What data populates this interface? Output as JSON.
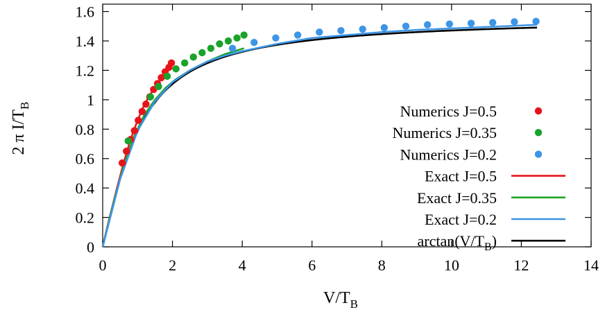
{
  "chart_data": {
    "type": "line",
    "title": "",
    "xlabel": "V/T",
    "xlabel_sub": "B",
    "ylabel": "2 π I/T",
    "ylabel_sub": "B",
    "xlim": [
      0,
      14
    ],
    "ylim": [
      0,
      1.65
    ],
    "xticks": [
      0,
      2,
      4,
      6,
      8,
      10,
      12,
      14
    ],
    "yticks": [
      0,
      0.2,
      0.4,
      0.6,
      0.8,
      1,
      1.2,
      1.4,
      1.6
    ],
    "xtick_labels": [
      "0",
      "2",
      "4",
      "6",
      "8",
      "10",
      "12",
      "14"
    ],
    "ytick_labels": [
      "0",
      "0.2",
      "0.4",
      "0.6",
      "0.8",
      "1",
      "1.2",
      "1.4",
      "1.6"
    ],
    "grid": false,
    "legend_position": "right",
    "series": [
      {
        "name": "Numerics J=0.5",
        "kind": "scatter",
        "color": "#e8131a",
        "x": [
          0.56,
          0.68,
          0.8,
          0.91,
          1.02,
          1.13,
          1.24,
          1.35,
          1.46,
          1.57,
          1.68,
          1.79,
          1.9,
          1.97
        ],
        "y": [
          0.57,
          0.65,
          0.73,
          0.79,
          0.86,
          0.92,
          0.97,
          1.02,
          1.07,
          1.11,
          1.15,
          1.19,
          1.22,
          1.25
        ]
      },
      {
        "name": "Numerics J=0.35",
        "kind": "scatter",
        "color": "#1aa32b",
        "x": [
          0.73,
          1.37,
          1.6,
          1.85,
          2.1,
          2.35,
          2.6,
          2.85,
          3.1,
          3.35,
          3.6,
          3.85,
          4.05
        ],
        "y": [
          0.72,
          1.02,
          1.09,
          1.16,
          1.21,
          1.25,
          1.29,
          1.32,
          1.35,
          1.38,
          1.4,
          1.42,
          1.44
        ]
      },
      {
        "name": "Numerics J=0.2",
        "kind": "scatter",
        "color": "#3d95e6",
        "x": [
          3.72,
          4.34,
          4.96,
          5.59,
          6.21,
          6.83,
          7.45,
          8.07,
          8.69,
          9.31,
          9.94,
          10.56,
          11.18,
          11.8,
          12.42
        ],
        "y": [
          1.35,
          1.39,
          1.42,
          1.44,
          1.46,
          1.47,
          1.48,
          1.49,
          1.5,
          1.51,
          1.515,
          1.52,
          1.525,
          1.53,
          1.533
        ]
      },
      {
        "name": "Exact J=0.5",
        "kind": "line",
        "color": "#e8131a",
        "x": [
          0,
          0.2,
          0.4,
          0.6,
          0.8,
          1.0,
          1.2,
          1.4,
          1.6,
          1.8,
          1.97
        ],
        "y": [
          0,
          0.2,
          0.39,
          0.57,
          0.73,
          0.86,
          0.97,
          1.05,
          1.12,
          1.18,
          1.22
        ]
      },
      {
        "name": "Exact J=0.35",
        "kind": "line",
        "color": "#1aa32b",
        "x": [
          0,
          0.3,
          0.6,
          0.9,
          1.2,
          1.5,
          1.8,
          2.1,
          2.5,
          3.0,
          3.5,
          4.05
        ],
        "y": [
          0,
          0.29,
          0.55,
          0.75,
          0.9,
          1.0,
          1.08,
          1.14,
          1.2,
          1.26,
          1.31,
          1.35
        ]
      },
      {
        "name": "Exact J=0.2",
        "kind": "line",
        "color": "#3d95e6",
        "x": [
          0,
          0.5,
          1,
          1.5,
          2,
          2.5,
          3,
          3.5,
          4,
          5,
          6,
          7,
          8,
          9,
          10,
          11,
          12,
          12.45
        ],
        "y": [
          0,
          0.46,
          0.79,
          0.99,
          1.12,
          1.2,
          1.26,
          1.3,
          1.33,
          1.38,
          1.42,
          1.44,
          1.46,
          1.475,
          1.485,
          1.495,
          1.505,
          1.51
        ]
      },
      {
        "name": "arctan(V/T",
        "name_sub": "B",
        "name_suffix": ")",
        "kind": "function",
        "function": "arctan",
        "color": "#000000",
        "x_range": [
          0,
          12.45
        ]
      }
    ]
  }
}
